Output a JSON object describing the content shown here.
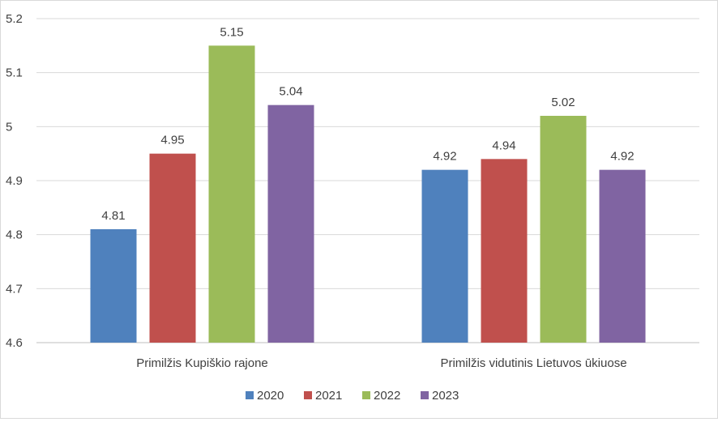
{
  "chart_data": {
    "type": "bar",
    "title": "",
    "xlabel": "",
    "ylabel": "",
    "categories": [
      "Primilžis Kupiškio rajone",
      "Primilžis vidutinis Lietuvos ūkiuose"
    ],
    "series": [
      {
        "name": "2020",
        "color": "#4F81BD",
        "values": [
          4.81,
          4.92
        ]
      },
      {
        "name": "2021",
        "color": "#C0504D",
        "values": [
          4.95,
          4.94
        ]
      },
      {
        "name": "2022",
        "color": "#9BBB59",
        "values": [
          5.15,
          5.02
        ]
      },
      {
        "name": "2023",
        "color": "#8064A2",
        "values": [
          5.04,
          4.92
        ]
      }
    ],
    "ylim": [
      4.6,
      5.2
    ],
    "yticks": [
      "4.6",
      "4.7",
      "4.8",
      "4.9",
      "5",
      "5.1",
      "5.2"
    ],
    "data_labels": [
      [
        "4.81",
        "4.92"
      ],
      [
        "4.95",
        "4.94"
      ],
      [
        "5.15",
        "5.02"
      ],
      [
        "5.04",
        "4.92"
      ]
    ],
    "grid": true,
    "legend": "bottom"
  }
}
